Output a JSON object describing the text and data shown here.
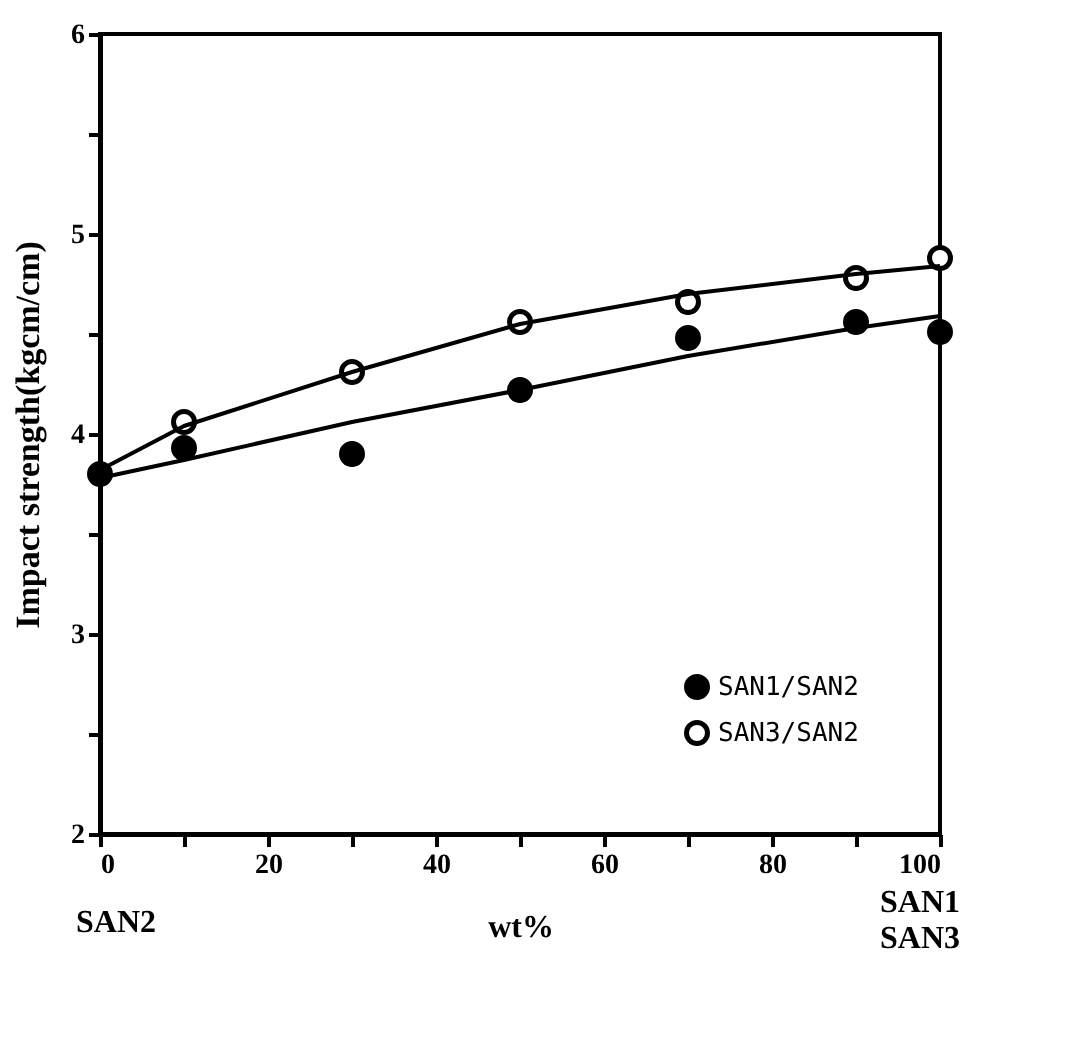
{
  "chart_data": {
    "type": "scatter",
    "xlabel": "wt%",
    "ylabel": "Impact strength(kgcm/cm)",
    "annotations": [
      "SAN2",
      "SAN1\nSAN3"
    ],
    "xlim": [
      0,
      100
    ],
    "ylim": [
      2,
      6
    ],
    "xticks": [
      0,
      {
        "value": 10,
        "label": null
      },
      20,
      {
        "value": 30,
        "label": null
      },
      40,
      {
        "value": 50,
        "label": null
      },
      60,
      {
        "value": 70,
        "label": null
      },
      80,
      {
        "value": 90,
        "label": null
      },
      100
    ],
    "yticks": [
      2,
      {
        "value": 2.5,
        "label": null
      },
      3,
      {
        "value": 3.5,
        "label": null
      },
      4,
      {
        "value": 4.5,
        "label": null
      },
      5,
      {
        "value": 5.5,
        "label": null
      },
      6
    ],
    "grid": false,
    "legend": "bottom right",
    "series": [
      {
        "name": "SAN1/SAN2",
        "color": "#000000",
        "marker": "circle",
        "x": [
          0,
          10,
          30,
          50,
          70,
          90,
          100
        ],
        "values": [
          3.8,
          3.93,
          3.9,
          4.22,
          4.48,
          4.56,
          4.51
        ]
      },
      {
        "name": "SAN3/SAN2",
        "color": "#000000",
        "marker": "circle",
        "x": [
          10,
          30,
          50,
          70,
          90,
          100
        ],
        "values": [
          4.06,
          4.31,
          4.56,
          4.66,
          4.78,
          4.88
        ]
      },
      {
        "type": "line",
        "color": "#000000",
        "line_style": "solid",
        "marker": "none",
        "x": [
          0,
          10,
          30,
          50,
          70,
          90,
          100
        ],
        "values": [
          3.78,
          3.87,
          4.06,
          4.22,
          4.39,
          4.53,
          4.59
        ]
      },
      {
        "type": "line",
        "color": "#000000",
        "line_style": "solid",
        "marker": "none",
        "x": [
          0,
          10,
          30,
          50,
          70,
          90,
          100
        ],
        "values": [
          3.82,
          4.04,
          4.31,
          4.55,
          4.7,
          4.8,
          4.84
        ]
      }
    ]
  }
}
